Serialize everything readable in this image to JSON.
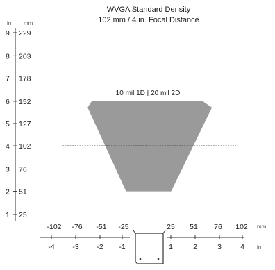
{
  "chart_data": {
    "type": "area",
    "title": "WVGA Standard Density",
    "subtitle": "102 mm / 4 in. Focal Distance",
    "zone_label": "10 mil 1D | 20 mil 2D",
    "focal_distance_mm": 102,
    "units": {
      "y_in": "in.",
      "y_mm": "mm",
      "x_mm": "mm",
      "x_in": "in."
    },
    "y_axis": {
      "in_ticks": [
        "1",
        "2",
        "3",
        "4",
        "5",
        "6",
        "7",
        "8",
        "9"
      ],
      "mm_ticks": [
        "25",
        "51",
        "76",
        "102",
        "127",
        "152",
        "178",
        "203",
        "229"
      ],
      "range_mm": [
        25,
        229
      ]
    },
    "x_axis": {
      "mm_ticks": [
        "-102",
        "-76",
        "-51",
        "-25",
        "25",
        "51",
        "76",
        "102"
      ],
      "in_ticks": [
        "-4",
        "-3",
        "-2",
        "-1",
        "1",
        "2",
        "3",
        "4"
      ]
    },
    "read_zone": [
      {
        "distance_mm": 51,
        "x_min_mm": -25,
        "x_max_mm": 25
      },
      {
        "distance_mm": 152,
        "x_min_mm": -63,
        "x_max_mm": 60
      },
      {
        "distance_mm": 145,
        "x_min_mm": -66,
        "x_max_mm": 64
      }
    ],
    "colors": {
      "zone": "#9a9a9a",
      "axis": "#333333",
      "focal_line": "#333333"
    }
  }
}
